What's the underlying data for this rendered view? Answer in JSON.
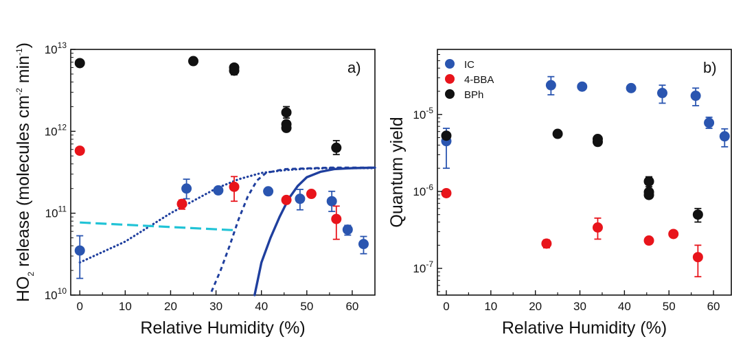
{
  "colors": {
    "IC": "#2a55b0",
    "4-BBA": "#e8141b",
    "BPh": "#111111",
    "model_dark": "#1f3f9e",
    "model_cyan": "#21c3d6"
  },
  "chart_data": [
    {
      "panel": "a",
      "type": "scatter",
      "tag": "a)",
      "xlabel": "Relative Humidity (%)",
      "ylabel": {
        "prefix": "HO",
        "sub": "2",
        "middle": " release (molecules cm",
        "sup1": "-2",
        "middle2": " min",
        "sup2": "-1",
        "suffix": ")"
      },
      "xlim": [
        -2,
        65
      ],
      "ylim": [
        10000000000.0,
        10000000000000.0
      ],
      "yscale": "log",
      "xticks": [
        0,
        10,
        20,
        30,
        40,
        50,
        60
      ],
      "yticks": [
        {
          "value": 10000000000.0,
          "base": "10",
          "exp": "10"
        },
        {
          "value": 100000000000.0,
          "base": "10",
          "exp": "11"
        },
        {
          "value": 1000000000000.0,
          "base": "10",
          "exp": "12"
        },
        {
          "value": 10000000000000.0,
          "base": "10",
          "exp": "13"
        }
      ],
      "series": [
        {
          "key": "IC",
          "points": [
            {
              "x": 0,
              "y": 35000000000.0,
              "lo": 16000000000.0,
              "hi": 53000000000.0
            },
            {
              "x": 23.5,
              "y": 200000000000.0,
              "lo": 150000000000.0,
              "hi": 260000000000.0
            },
            {
              "x": 30.5,
              "y": 190000000000.0
            },
            {
              "x": 41.5,
              "y": 185000000000.0
            },
            {
              "x": 48.5,
              "y": 150000000000.0,
              "lo": 110000000000.0,
              "hi": 195000000000.0
            },
            {
              "x": 55.5,
              "y": 140000000000.0,
              "lo": 105000000000.0,
              "hi": 185000000000.0
            },
            {
              "x": 59,
              "y": 63000000000.0,
              "lo": 54000000000.0,
              "hi": 71000000000.0
            },
            {
              "x": 62.5,
              "y": 42000000000.0,
              "lo": 32000000000.0,
              "hi": 52000000000.0
            }
          ]
        },
        {
          "key": "4-BBA",
          "points": [
            {
              "x": 0,
              "y": 580000000000.0
            },
            {
              "x": 22.5,
              "y": 130000000000.0,
              "lo": 112000000000.0,
              "hi": 145000000000.0
            },
            {
              "x": 34,
              "y": 210000000000.0,
              "lo": 140000000000.0,
              "hi": 280000000000.0
            },
            {
              "x": 45.5,
              "y": 145000000000.0
            },
            {
              "x": 51,
              "y": 172000000000.0
            },
            {
              "x": 56.5,
              "y": 85000000000.0,
              "lo": 48000000000.0,
              "hi": 122000000000.0
            }
          ]
        },
        {
          "key": "BPh",
          "points": [
            {
              "x": 0,
              "y": 6800000000000.0
            },
            {
              "x": 25,
              "y": 7200000000000.0
            },
            {
              "x": 34,
              "y": 5500000000000.0,
              "lo": 4900000000000.0,
              "hi": 6200000000000.0
            },
            {
              "x": 34,
              "y": 6000000000000.0
            },
            {
              "x": 45.5,
              "y": 1700000000000.0,
              "lo": 1450000000000.0,
              "hi": 2000000000000.0
            },
            {
              "x": 45.5,
              "y": 1220000000000.0
            },
            {
              "x": 45.5,
              "y": 1100000000000.0
            },
            {
              "x": 56.5,
              "y": 630000000000.0,
              "lo": 520000000000.0,
              "hi": 770000000000.0
            }
          ]
        }
      ],
      "model_curves": [
        {
          "style": "dotted",
          "color_key": "model_dark",
          "points": [
            [
              0,
              25000000000.0
            ],
            [
              10,
              45000000000.0
            ],
            [
              20,
              100000000000.0
            ],
            [
              30,
              200000000000.0
            ],
            [
              35,
              260000000000.0
            ],
            [
              40,
              310000000000.0
            ],
            [
              45,
              335000000000.0
            ],
            [
              50,
              350000000000.0
            ],
            [
              55,
              355000000000.0
            ],
            [
              65,
              355000000000.0
            ]
          ]
        },
        {
          "style": "dashed",
          "color_key": "model_dark",
          "points": [
            [
              29,
              11000000000.0
            ],
            [
              31,
              20000000000.0
            ],
            [
              33,
              40000000000.0
            ],
            [
              35,
              85000000000.0
            ],
            [
              37,
              160000000000.0
            ],
            [
              39,
              250000000000.0
            ],
            [
              41,
              310000000000.0
            ],
            [
              45,
              345000000000.0
            ],
            [
              55,
              360000000000.0
            ],
            [
              65,
              360000000000.0
            ]
          ]
        },
        {
          "style": "solid",
          "color_key": "model_dark",
          "points": [
            [
              38.5,
              10000000000.0
            ],
            [
              40,
              25000000000.0
            ],
            [
              42,
              50000000000.0
            ],
            [
              44,
              90000000000.0
            ],
            [
              46,
              150000000000.0
            ],
            [
              48,
              215000000000.0
            ],
            [
              50,
              275000000000.0
            ],
            [
              53,
              320000000000.0
            ],
            [
              56,
              345000000000.0
            ],
            [
              60,
              355000000000.0
            ],
            [
              65,
              360000000000.0
            ]
          ]
        },
        {
          "style": "longdash",
          "color_key": "model_cyan",
          "points": [
            [
              0,
              77000000000.0
            ],
            [
              34,
              62000000000.0
            ]
          ]
        }
      ]
    },
    {
      "panel": "b",
      "type": "scatter",
      "tag": "b)",
      "xlabel": "Relative Humidity (%)",
      "ylabel": "Quantum yield",
      "xlim": [
        -2,
        64
      ],
      "ylim": [
        4.5e-08,
        7e-05
      ],
      "yscale": "log",
      "xticks": [
        0,
        10,
        20,
        30,
        40,
        50,
        60
      ],
      "yticks": [
        {
          "value": 1e-07,
          "base": "10",
          "exp": "-7"
        },
        {
          "value": 1e-06,
          "base": "10",
          "exp": "-6"
        },
        {
          "value": 1e-05,
          "base": "10",
          "exp": "-5"
        }
      ],
      "legend": {
        "placement": "top-left",
        "entries": [
          "IC",
          "4-BBA",
          "BPh"
        ]
      },
      "series": [
        {
          "key": "IC",
          "points": [
            {
              "x": 0,
              "y": 4.5e-06,
              "lo": 2e-06,
              "hi": 6.6e-06
            },
            {
              "x": 23.5,
              "y": 2.4e-05,
              "lo": 1.8e-05,
              "hi": 3.1e-05
            },
            {
              "x": 30.5,
              "y": 2.3e-05
            },
            {
              "x": 41.5,
              "y": 2.2e-05
            },
            {
              "x": 48.5,
              "y": 1.9e-05,
              "lo": 1.4e-05,
              "hi": 2.4e-05
            },
            {
              "x": 56,
              "y": 1.75e-05,
              "lo": 1.3e-05,
              "hi": 2.2e-05
            },
            {
              "x": 59,
              "y": 7.8e-06,
              "lo": 6.6e-06,
              "hi": 9.2e-06
            },
            {
              "x": 62.5,
              "y": 5.2e-06,
              "lo": 3.8e-06,
              "hi": 6.5e-06
            }
          ]
        },
        {
          "key": "4-BBA",
          "points": [
            {
              "x": 0,
              "y": 9.5e-07
            },
            {
              "x": 22.5,
              "y": 2.1e-07,
              "lo": 1.85e-07,
              "hi": 2.35e-07
            },
            {
              "x": 34,
              "y": 3.4e-07,
              "lo": 2.4e-07,
              "hi": 4.5e-07
            },
            {
              "x": 45.5,
              "y": 2.3e-07
            },
            {
              "x": 51,
              "y": 2.8e-07
            },
            {
              "x": 56.5,
              "y": 1.4e-07,
              "lo": 7.8e-08,
              "hi": 2e-07
            }
          ]
        },
        {
          "key": "BPh",
          "points": [
            {
              "x": 0,
              "y": 5.3e-06
            },
            {
              "x": 25,
              "y": 5.6e-06
            },
            {
              "x": 34,
              "y": 4.4e-06,
              "lo": 4e-06,
              "hi": 4.9e-06
            },
            {
              "x": 34,
              "y": 4.8e-06
            },
            {
              "x": 45.5,
              "y": 1.35e-06,
              "lo": 1.15e-06,
              "hi": 1.55e-06
            },
            {
              "x": 45.5,
              "y": 9.8e-07
            },
            {
              "x": 45.5,
              "y": 9e-07
            },
            {
              "x": 56.5,
              "y": 5e-07,
              "lo": 4e-07,
              "hi": 6e-07
            }
          ]
        }
      ]
    }
  ]
}
